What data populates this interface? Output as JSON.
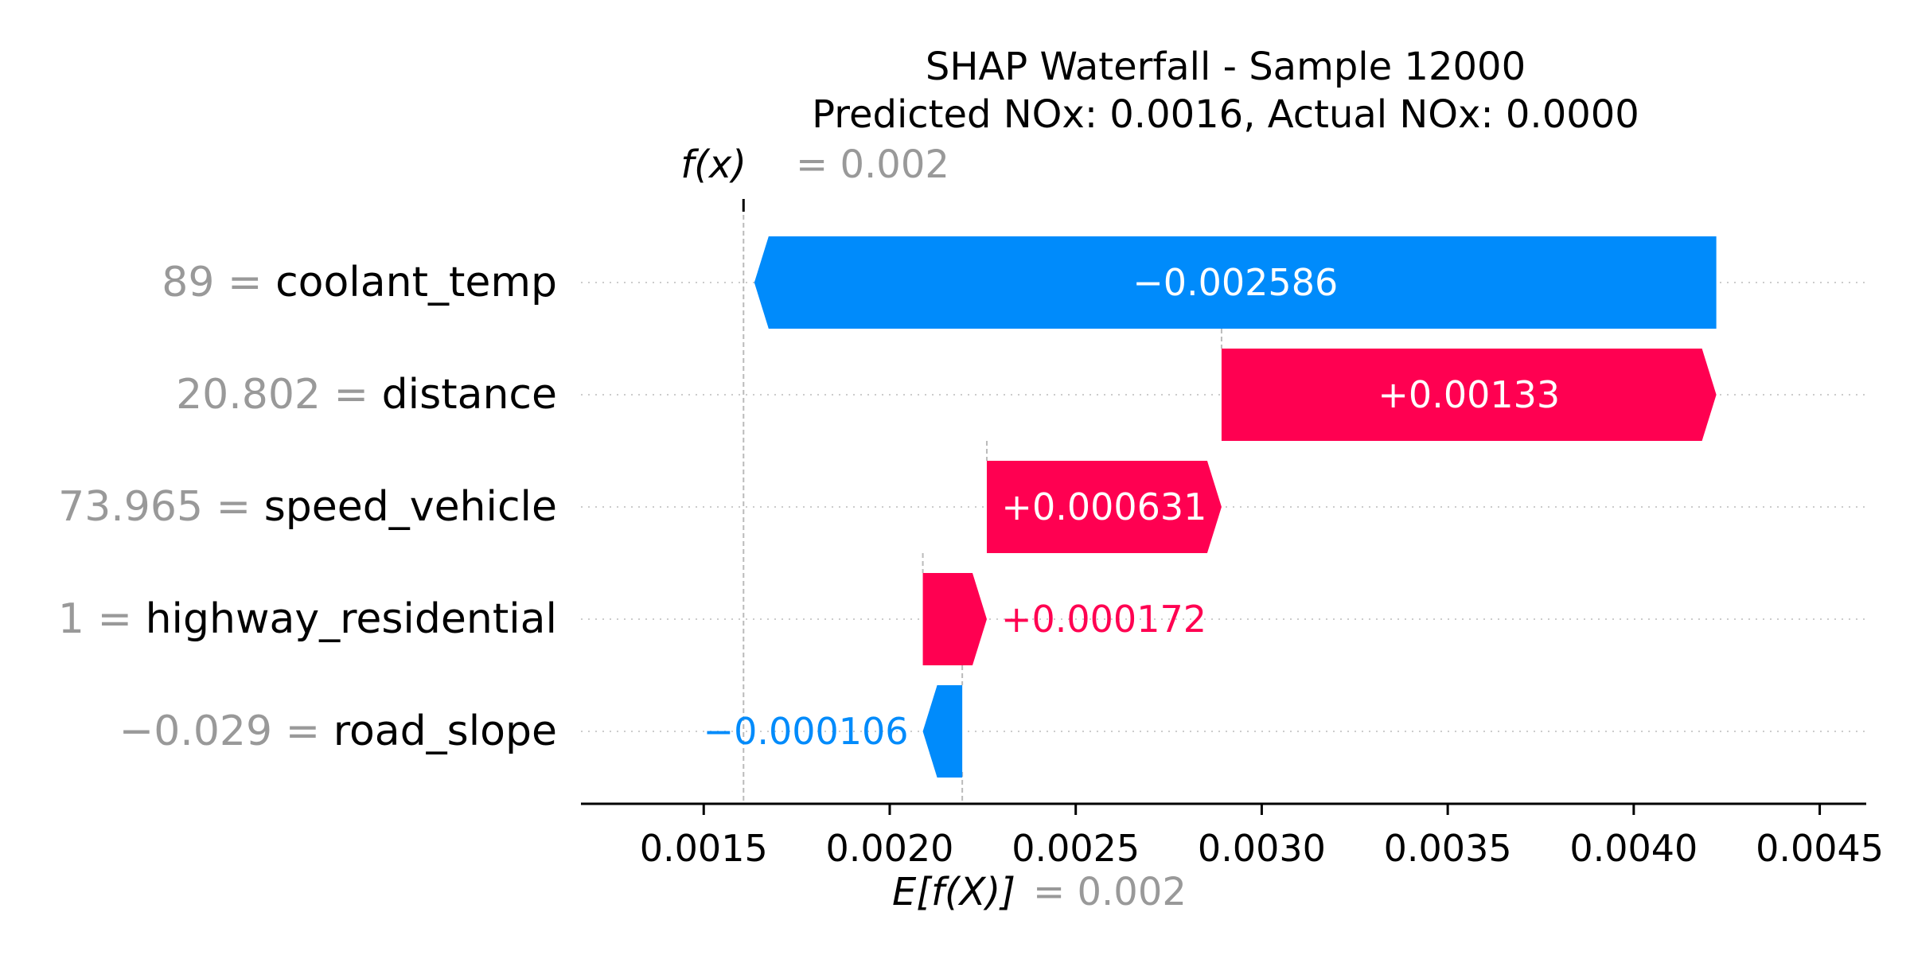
{
  "chart_data": {
    "type": "waterfall",
    "title_line1": "SHAP Waterfall - Sample 12000",
    "title_line2": "Predicted NOx: 0.0016, Actual NOx: 0.0000",
    "fx_label": "f(x)",
    "fx_value_text": "= 0.002",
    "efx_label": "E[f(X)]",
    "efx_value_text": "= 0.002",
    "fx": 0.001607,
    "base_value": 0.002195,
    "xlim": [
      0.00117,
      0.004625
    ],
    "xticks": [
      0.0015,
      0.002,
      0.0025,
      0.003,
      0.0035,
      0.004,
      0.0045
    ],
    "xtick_labels": [
      "0.0015",
      "0.0020",
      "0.0025",
      "0.0030",
      "0.0035",
      "0.0040",
      "0.0045"
    ],
    "features": [
      {
        "value_text": "89",
        "name": "coolant_temp",
        "shap": -0.002586,
        "label": "−0.002586"
      },
      {
        "value_text": "20.802",
        "name": "distance",
        "shap": 0.00133,
        "label": "+0.00133"
      },
      {
        "value_text": "73.965",
        "name": "speed_vehicle",
        "shap": 0.000631,
        "label": "+0.000631"
      },
      {
        "value_text": "1",
        "name": "highway_residential",
        "shap": 0.000172,
        "label": "+0.000172"
      },
      {
        "value_text": "−0.029",
        "name": "road_slope",
        "shap": -0.000106,
        "label": "−0.000106"
      }
    ],
    "colors": {
      "positive": "#ff0051",
      "negative": "#008bfb",
      "feature_value": "#999999",
      "feature_name": "#000000",
      "label_inside": "#ffffff"
    }
  }
}
